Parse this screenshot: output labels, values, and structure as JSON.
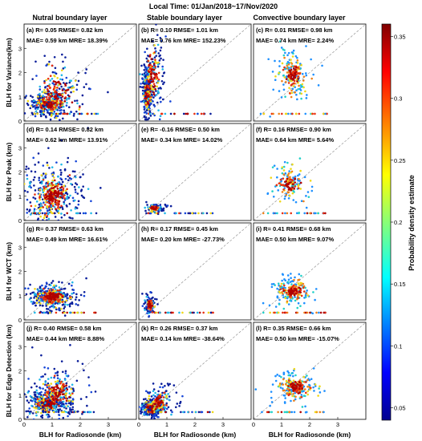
{
  "figure_title": "Local Time: 01/Jan/2018~17/Nov/2020",
  "column_titles": [
    "Nutral boundary layer",
    "Stable boundary layer",
    "Convective boundary layer"
  ],
  "row_ylabels": [
    "BLH for Variance(km)",
    "BLH for Peak (km)",
    "BLH for WCT (km)",
    "BLH for Edge Detection (km)"
  ],
  "xlabel": "BLH for Radiosonde (km)",
  "colorbar": {
    "label": "Probability density estimate",
    "ticks": [
      "0.05",
      "0.1",
      "0.15",
      "0.2",
      "0.25",
      "0.3",
      "0.35"
    ]
  },
  "x_ticks": [
    "0",
    "1",
    "2",
    "3"
  ],
  "y_ticks": [
    "0",
    "1",
    "2",
    "3"
  ],
  "chart_data": {
    "type": "scatter",
    "xlim": [
      0,
      4
    ],
    "ylim": [
      0,
      4
    ],
    "colorbar_range": [
      0.04,
      0.36
    ],
    "panels": [
      {
        "id": "a",
        "line1": "(a) R= 0.05  RMSE= 0.82 km",
        "line2": "MAE= 0.59 km MRE= 18.39%",
        "dist": [
          {
            "cx": 0.85,
            "cy": 0.7,
            "sx": 0.35,
            "sy": 0.25,
            "n": 40
          },
          {
            "cx": 1.2,
            "cy": 1.1,
            "sx": 0.7,
            "sy": 0.8,
            "n": 30
          }
        ],
        "baseline": 0.3,
        "colors": [
          "#0a1e9a",
          "#1646d8",
          "#21b8e8",
          "#f0d818",
          "#e83010",
          "#b00000"
        ]
      },
      {
        "id": "b",
        "line1": "(b) R= 0.10  RMSE= 1.01 km",
        "line2": "MAE= 0.76 km MRE= 152.23%",
        "dist": [
          {
            "cx": 0.3,
            "cy": 1.2,
            "sx": 0.1,
            "sy": 0.6,
            "n": 35
          },
          {
            "cx": 0.5,
            "cy": 1.8,
            "sx": 0.25,
            "sy": 1.0,
            "n": 25
          }
        ],
        "baseline": 0.3,
        "colors": [
          "#0a1e9a",
          "#1646d8",
          "#21b8e8",
          "#f0d818",
          "#e83010",
          "#b00000"
        ]
      },
      {
        "id": "c",
        "line1": "(c) R= 0.01  RMSE= 0.98 km",
        "line2": "MAE= 0.74 km MRE= 2.24%",
        "dist": [
          {
            "cx": 1.4,
            "cy": 1.9,
            "sx": 0.35,
            "sy": 0.55,
            "n": 26
          }
        ],
        "baseline": 0.3,
        "colors": [
          "#1e90ff",
          "#21d0c8",
          "#f0d818",
          "#f08018",
          "#e83010",
          "#b00000"
        ]
      },
      {
        "id": "d",
        "line1": "(d) R= 0.14  RMSE= 0.82 km",
        "line2": "MAE= 0.62 km MRE= 13.91%",
        "dist": [
          {
            "cx": 1.0,
            "cy": 1.0,
            "sx": 0.6,
            "sy": 0.8,
            "n": 55
          }
        ],
        "baseline": 0.3,
        "colors": [
          "#0a1e9a",
          "#1646d8",
          "#21b8e8",
          "#f0d818",
          "#e83010",
          "#b00000"
        ]
      },
      {
        "id": "e",
        "line1": "(e) R= -0.16  RMSE= 0.50 km",
        "line2": "MAE= 0.34 km MRE= 14.02%",
        "dist": [
          {
            "cx": 0.55,
            "cy": 0.5,
            "sx": 0.2,
            "sy": 0.1,
            "n": 12
          }
        ],
        "baseline": 0.3,
        "colors": [
          "#0a1e9a",
          "#1646d8",
          "#21b8e8",
          "#f0d818",
          "#e83010",
          "#b00000"
        ]
      },
      {
        "id": "f",
        "line1": "(f) R= 0.16  RMSE= 0.90 km",
        "line2": "MAE= 0.64 km MRE= 5.64%",
        "dist": [
          {
            "cx": 1.3,
            "cy": 1.5,
            "sx": 0.4,
            "sy": 0.5,
            "n": 18
          }
        ],
        "baseline": 0.3,
        "colors": [
          "#1e90ff",
          "#21d0c8",
          "#f0d818",
          "#f08018",
          "#e83010",
          "#b00000"
        ]
      },
      {
        "id": "g",
        "line1": "(g) R= 0.37  RMSE= 0.63 km",
        "line2": "MAE= 0.49 km MRE= 16.61%",
        "dist": [
          {
            "cx": 1.0,
            "cy": 0.95,
            "sx": 0.45,
            "sy": 0.3,
            "n": 55
          }
        ],
        "baseline": 0.3,
        "colors": [
          "#0a1e9a",
          "#1646d8",
          "#21b8e8",
          "#f0d818",
          "#e83010",
          "#b00000"
        ]
      },
      {
        "id": "h",
        "line1": "(h) R= 0.17  RMSE= 0.45 km",
        "line2": "MAE= 0.20 km MRE= -27.73%",
        "dist": [
          {
            "cx": 0.4,
            "cy": 0.6,
            "sx": 0.12,
            "sy": 0.25,
            "n": 14
          }
        ],
        "baseline": 0.3,
        "colors": [
          "#0a1e9a",
          "#1646d8",
          "#21b8e8",
          "#f0d818",
          "#e83010",
          "#b00000"
        ]
      },
      {
        "id": "i",
        "line1": "(i) R= 0.41  RMSE= 0.68 km",
        "line2": "MAE= 0.50 km MRE= 9.07%",
        "dist": [
          {
            "cx": 1.4,
            "cy": 1.2,
            "sx": 0.4,
            "sy": 0.35,
            "n": 24
          }
        ],
        "baseline": 0.3,
        "colors": [
          "#1e90ff",
          "#21d0c8",
          "#f0d818",
          "#f08018",
          "#e83010",
          "#b00000"
        ]
      },
      {
        "id": "j",
        "line1": "(j) R= 0.40  RMSE= 0.58 km",
        "line2": "MAE= 0.44 km MRE= 8.88%",
        "dist": [
          {
            "cx": 0.85,
            "cy": 0.65,
            "sx": 0.4,
            "sy": 0.3,
            "n": 45
          },
          {
            "cx": 1.2,
            "cy": 1.1,
            "sx": 0.6,
            "sy": 0.6,
            "n": 30
          }
        ],
        "baseline": 0.3,
        "colors": [
          "#0a1e9a",
          "#1646d8",
          "#21b8e8",
          "#f0d818",
          "#e83010",
          "#b00000"
        ]
      },
      {
        "id": "k",
        "line1": "(k) R= 0.26  RMSE= 0.37 km",
        "line2": "MAE= 0.14 km MRE= -38.64%",
        "dist": [
          {
            "cx": 0.45,
            "cy": 0.45,
            "sx": 0.2,
            "sy": 0.18,
            "n": 40
          },
          {
            "cx": 0.7,
            "cy": 0.7,
            "sx": 0.35,
            "sy": 0.35,
            "n": 20
          }
        ],
        "baseline": 0.3,
        "colors": [
          "#0a1e9a",
          "#1646d8",
          "#21b8e8",
          "#f0d818",
          "#e83010",
          "#b00000"
        ]
      },
      {
        "id": "l",
        "line1": "(l) R= 0.35  RMSE= 0.66 km",
        "line2": "MAE= 0.50 km MRE= -15.07%",
        "dist": [
          {
            "cx": 1.5,
            "cy": 1.3,
            "sx": 0.4,
            "sy": 0.35,
            "n": 30
          }
        ],
        "baseline": 0.3,
        "colors": [
          "#1e90ff",
          "#21d0c8",
          "#f0d818",
          "#f08018",
          "#e83010",
          "#b00000"
        ]
      }
    ]
  }
}
